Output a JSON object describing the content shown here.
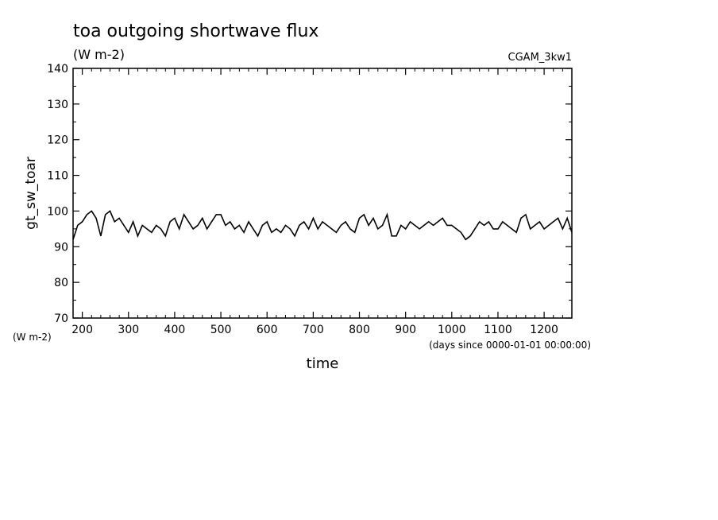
{
  "chart_data": {
    "type": "line",
    "title": "toa outgoing shortwave flux",
    "units": "(W m-2)",
    "dataset": "CGAM_3kw1",
    "ylabel": "gt_sw_toar",
    "yunits": "(W m-2)",
    "xlabel": "time",
    "xunits": "(days since 0000-01-01 00:00:00)",
    "xlim": [
      180,
      1260
    ],
    "ylim": [
      70,
      140
    ],
    "xticks": [
      200,
      300,
      400,
      500,
      600,
      700,
      800,
      900,
      1000,
      1100,
      1200
    ],
    "yticks": [
      70,
      80,
      90,
      100,
      110,
      120,
      130,
      140
    ],
    "grid": false,
    "series": [
      {
        "x": [
          180,
          190,
          200,
          210,
          220,
          230,
          240,
          250,
          260,
          270,
          280,
          290,
          300,
          310,
          320,
          330,
          340,
          350,
          360,
          370,
          380,
          390,
          400,
          410,
          420,
          430,
          440,
          450,
          460,
          470,
          480,
          490,
          500,
          510,
          520,
          530,
          540,
          550,
          560,
          570,
          580,
          590,
          600,
          610,
          620,
          630,
          640,
          650,
          660,
          670,
          680,
          690,
          700,
          710,
          720,
          730,
          740,
          750,
          760,
          770,
          780,
          790,
          800,
          810,
          820,
          830,
          840,
          850,
          860,
          870,
          880,
          890,
          900,
          910,
          920,
          930,
          940,
          950,
          960,
          970,
          980,
          990,
          1000,
          1010,
          1020,
          1030,
          1040,
          1050,
          1060,
          1070,
          1080,
          1090,
          1100,
          1110,
          1120,
          1130,
          1140,
          1150,
          1160,
          1170,
          1180,
          1190,
          1200,
          1210,
          1220,
          1230,
          1240,
          1250,
          1260
        ],
        "values": [
          92,
          96,
          97,
          99,
          100,
          98,
          93,
          99,
          100,
          97,
          98,
          96,
          94,
          97,
          93,
          96,
          95,
          94,
          96,
          95,
          93,
          97,
          98,
          95,
          99,
          97,
          95,
          96,
          98,
          95,
          97,
          99,
          99,
          96,
          97,
          95,
          96,
          94,
          97,
          95,
          93,
          96,
          97,
          94,
          95,
          94,
          96,
          95,
          93,
          96,
          97,
          95,
          98,
          95,
          97,
          96,
          95,
          94,
          96,
          97,
          95,
          94,
          98,
          99,
          96,
          98,
          95,
          96,
          99,
          93,
          93,
          96,
          95,
          97,
          96,
          95,
          96,
          97,
          96,
          97,
          98,
          96,
          96,
          95,
          94,
          92,
          93,
          95,
          97,
          96,
          97,
          95,
          95,
          97,
          96,
          95,
          94,
          98,
          99,
          95,
          96,
          97,
          95,
          96,
          97,
          98,
          95,
          98,
          94
        ]
      }
    ]
  }
}
